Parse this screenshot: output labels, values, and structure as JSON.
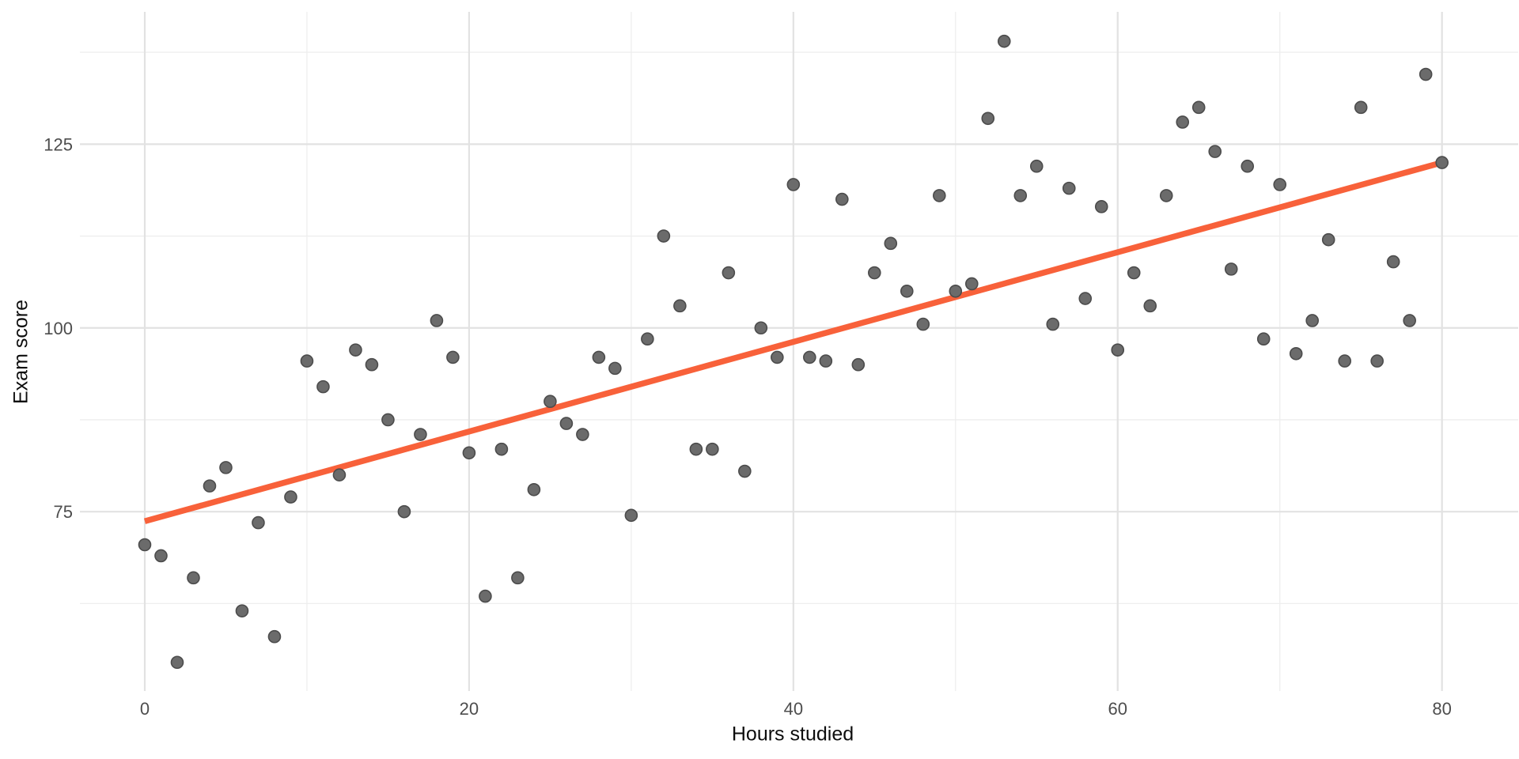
{
  "figure": {
    "kind": "ggplot-scatter-with-linear-fit",
    "background": "#ffffff"
  },
  "colors": {
    "point_fill": "#6b6b6b",
    "point_stroke": "#4c4c4c",
    "fit_line": "#f8613a",
    "grid_major": "#e2e2e2",
    "grid_minor": "#eeeeee",
    "tick_text": "#4d4d4d",
    "axis_title_text": "#0d0d0d"
  },
  "chart_data": {
    "type": "scatter",
    "title": "",
    "xlabel": "Hours studied",
    "ylabel": "Exam score",
    "xlim": [
      -4,
      84.7
    ],
    "ylim": [
      50.6,
      143
    ],
    "grid": "on",
    "legend": "none",
    "x_axis": {
      "ticks": [
        0,
        20,
        40,
        60,
        80
      ],
      "tick_labels": [
        "0",
        "20",
        "40",
        "60",
        "80"
      ],
      "minor_ticks": [
        10,
        30,
        50,
        70
      ]
    },
    "y_axis": {
      "ticks": [
        75,
        100,
        125
      ],
      "tick_labels": [
        "75",
        "100",
        "125"
      ],
      "minor_ticks": [
        62.5,
        87.5,
        112.5,
        137.5
      ]
    },
    "series": [
      {
        "name": "observations",
        "type": "scatter",
        "x": [
          0,
          1,
          2,
          3,
          4,
          5,
          6,
          7,
          8,
          9,
          10,
          11,
          12,
          13,
          14,
          15,
          16,
          17,
          18,
          19,
          20,
          21,
          22,
          23,
          24,
          25,
          26,
          27,
          28,
          29,
          30,
          31,
          32,
          33,
          34,
          35,
          36,
          37,
          38,
          39,
          40,
          41,
          42,
          43,
          44,
          45,
          46,
          47,
          48,
          49,
          50,
          51,
          52,
          53,
          54,
          55,
          56,
          57,
          58,
          59,
          60,
          61,
          62,
          63,
          64,
          65,
          66,
          67,
          68,
          69,
          70,
          71,
          72,
          73,
          74,
          75,
          76,
          77,
          78,
          79,
          80
        ],
        "y": [
          70.5,
          69,
          54.5,
          66,
          78.5,
          81,
          61.5,
          73.5,
          58,
          77,
          95.5,
          92,
          80,
          97,
          95,
          87.5,
          75,
          85.5,
          101,
          96,
          83,
          63.5,
          83.5,
          66,
          78,
          90,
          87,
          85.5,
          96,
          94.5,
          74.5,
          98.5,
          112.5,
          103,
          83.5,
          83.5,
          107.5,
          80.5,
          100,
          96,
          119.5,
          96,
          95.5,
          117.5,
          95,
          107.5,
          111.5,
          105,
          100.5,
          118,
          105,
          106,
          128.5,
          139,
          118,
          122,
          100.5,
          119,
          104,
          116.5,
          97,
          107.5,
          103,
          118,
          128,
          130,
          124,
          108,
          122,
          98.5,
          119.5,
          96.5,
          101,
          112,
          95.5,
          130,
          95.5,
          109,
          101,
          134.5,
          122.5
        ]
      },
      {
        "name": "linear-fit",
        "type": "line",
        "x": [
          0,
          80
        ],
        "y": [
          73.7,
          122.5
        ]
      }
    ]
  }
}
